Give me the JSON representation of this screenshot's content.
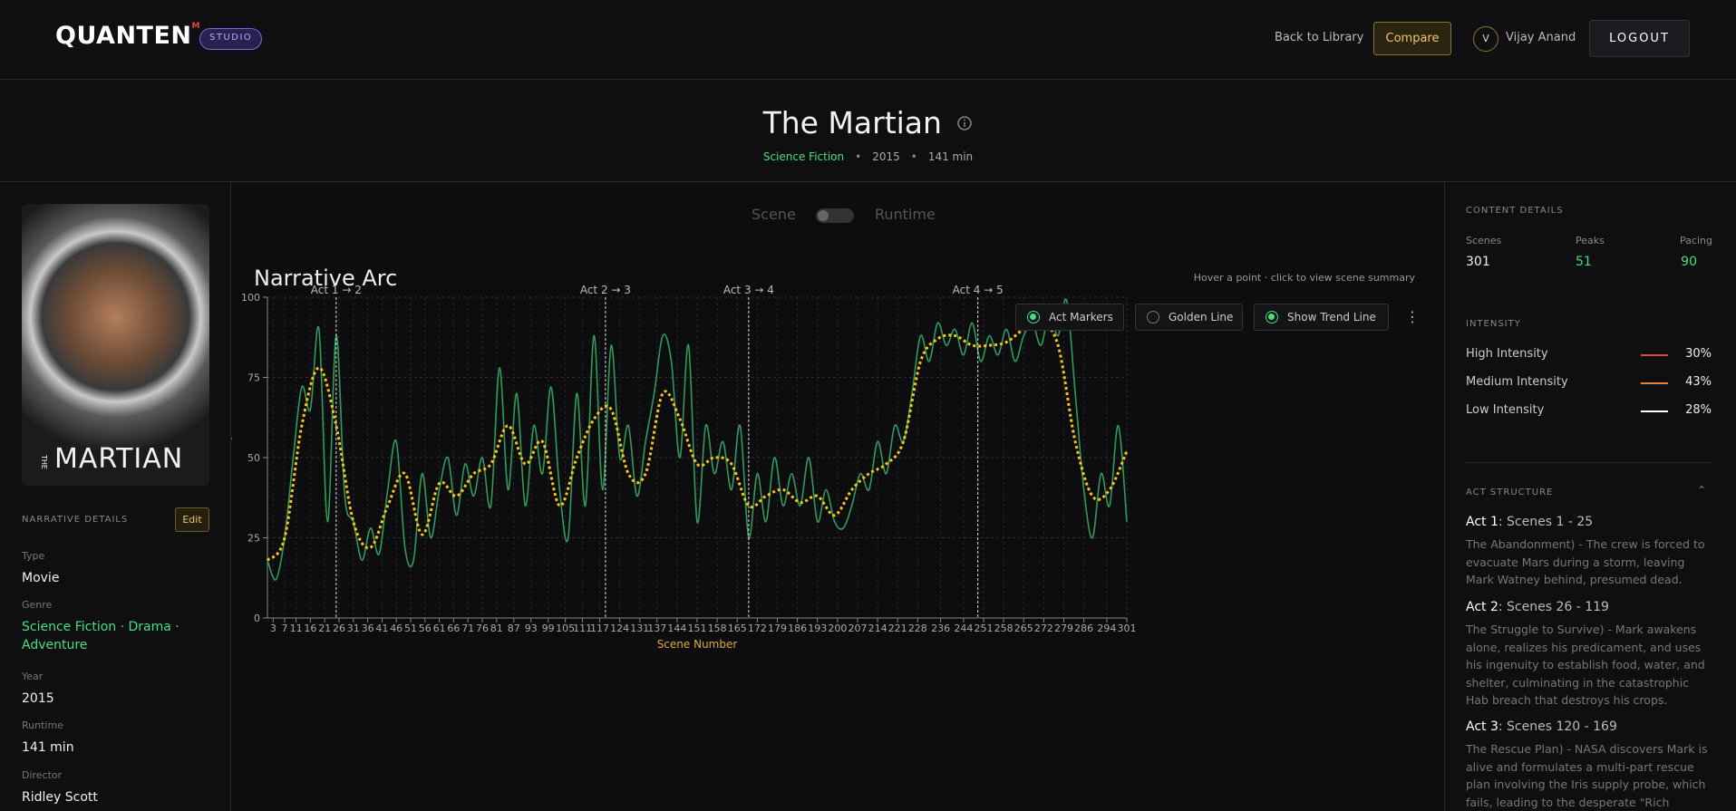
{
  "header": {
    "brand": "QUANTEN",
    "brand_mark": "M",
    "badge": "STUDIO",
    "nav": [
      "Back to Library",
      "Compare"
    ],
    "avatar": "V",
    "user": "Vijay Anand",
    "logout": "LOGOUT"
  },
  "movie": {
    "title": "The Martian",
    "genre": "Science Fiction",
    "year": "2015",
    "runtime": "141 min"
  },
  "poster": {
    "top": "THE",
    "word": "MARTIAN"
  },
  "toggle": {
    "left": "Scene",
    "right": "Runtime"
  },
  "left_panel": {
    "heading": "NARRATIVE DETAILS",
    "edit": "Edit",
    "fields": [
      {
        "label": "Type",
        "value": "Movie"
      },
      {
        "label": "Genre",
        "value": "Science Fiction · Drama · Adventure"
      },
      {
        "label": "Year",
        "value": "2015"
      },
      {
        "label": "Runtime",
        "value": "141 min"
      },
      {
        "label": "Director",
        "value": "Ridley Scott"
      }
    ]
  },
  "chart_header": {
    "title": "Narrative Arc",
    "hint": "Hover a point · click to view scene summary",
    "toggles": [
      "Act Markers",
      "Golden Line",
      "Show Trend Line"
    ],
    "toggle_on": [
      true,
      false,
      true
    ]
  },
  "chart_data": {
    "type": "line",
    "xlabel": "Scene Number",
    "ylabel": "Intensity",
    "xlim": [
      1,
      301
    ],
    "ylim": [
      0,
      100
    ],
    "yticks": [
      0,
      25,
      50,
      75,
      100
    ],
    "xticks": [
      3,
      7,
      11,
      16,
      21,
      26,
      31,
      36,
      41,
      46,
      51,
      56,
      61,
      66,
      71,
      76,
      81,
      87,
      93,
      99,
      105,
      111,
      117,
      124,
      131,
      137,
      144,
      151,
      158,
      165,
      172,
      179,
      186,
      193,
      200,
      207,
      214,
      221,
      228,
      236,
      244,
      251,
      258,
      265,
      272,
      279,
      286,
      294,
      301
    ],
    "grid": true,
    "acts": {
      "x": [
        25,
        119,
        169,
        249
      ],
      "labels": [
        "Act 1 → 2",
        "Act 2 → 3",
        "Act 3 → 4",
        "Act 4 → 5"
      ]
    },
    "series": [
      {
        "name": "Intensity",
        "color": "#2f9a5c",
        "x": [
          1,
          4,
          7,
          10,
          13,
          16,
          19,
          22,
          25,
          28,
          31,
          34,
          37,
          40,
          43,
          46,
          49,
          52,
          55,
          58,
          61,
          64,
          67,
          70,
          73,
          76,
          79,
          82,
          85,
          88,
          91,
          94,
          97,
          100,
          103,
          106,
          109,
          112,
          115,
          118,
          121,
          124,
          127,
          130,
          133,
          136,
          139,
          142,
          145,
          148,
          151,
          154,
          157,
          160,
          163,
          166,
          169,
          172,
          175,
          178,
          181,
          184,
          187,
          190,
          193,
          196,
          199,
          202,
          205,
          208,
          211,
          214,
          217,
          220,
          223,
          226,
          229,
          232,
          235,
          238,
          241,
          244,
          247,
          250,
          253,
          256,
          259,
          262,
          265,
          268,
          271,
          274,
          277,
          280,
          283,
          286,
          289,
          292,
          295,
          298,
          301
        ],
        "values": [
          18,
          12,
          25,
          50,
          72,
          65,
          90,
          30,
          88,
          38,
          30,
          18,
          28,
          20,
          40,
          55,
          22,
          18,
          45,
          25,
          40,
          50,
          32,
          48,
          38,
          50,
          35,
          78,
          40,
          70,
          35,
          60,
          45,
          72,
          40,
          25,
          70,
          35,
          88,
          40,
          85,
          50,
          60,
          38,
          55,
          70,
          88,
          80,
          50,
          85,
          30,
          60,
          45,
          55,
          40,
          60,
          25,
          45,
          30,
          50,
          35,
          45,
          35,
          50,
          30,
          40,
          30,
          28,
          35,
          45,
          40,
          55,
          45,
          60,
          55,
          70,
          88,
          80,
          92,
          85,
          90,
          82,
          92,
          80,
          88,
          82,
          90,
          80,
          88,
          92,
          85,
          95,
          88,
          99,
          70,
          40,
          25,
          45,
          35,
          60,
          30
        ]
      },
      {
        "name": "Trend",
        "color": "#f5c518",
        "x": [
          1,
          7,
          13,
          19,
          25,
          31,
          37,
          43,
          49,
          55,
          61,
          67,
          73,
          79,
          85,
          91,
          97,
          103,
          109,
          115,
          121,
          127,
          133,
          139,
          145,
          151,
          157,
          163,
          169,
          175,
          181,
          187,
          193,
          199,
          205,
          211,
          217,
          223,
          229,
          235,
          241,
          247,
          253,
          259,
          265,
          271,
          277,
          283,
          289,
          295,
          301
        ],
        "values": [
          18,
          25,
          60,
          78,
          60,
          30,
          22,
          35,
          45,
          26,
          42,
          38,
          45,
          48,
          60,
          48,
          55,
          35,
          50,
          62,
          65,
          45,
          45,
          70,
          62,
          48,
          50,
          48,
          35,
          38,
          40,
          36,
          38,
          32,
          40,
          45,
          48,
          55,
          80,
          87,
          88,
          85,
          85,
          86,
          90,
          92,
          85,
          55,
          38,
          40,
          52
        ]
      }
    ]
  },
  "right_panel": {
    "heading": "CONTENT DETAILS",
    "stats": [
      {
        "label": "Scenes",
        "value": "301"
      },
      {
        "label": "Peaks",
        "value": "51"
      },
      {
        "label": "Pacing",
        "value": "90"
      }
    ],
    "intensity_heading": "INTENSITY",
    "intensity": [
      {
        "label": "High Intensity",
        "color": "#e04848",
        "value": "30%"
      },
      {
        "label": "Medium Intensity",
        "color": "#e8833a",
        "value": "43%"
      },
      {
        "label": "Low Intensity",
        "color": "#ffffff",
        "value": "28%"
      }
    ],
    "act_heading": "ACT STRUCTURE",
    "acts": [
      {
        "name": "Act 1",
        "range": ": Scenes 1 - 25",
        "text": "The Abandonment) - The crew is forced to evacuate Mars during a storm, leaving Mark Watney behind, presumed dead."
      },
      {
        "name": "Act 2",
        "range": ": Scenes 26 - 119",
        "text": "The Struggle to Survive) - Mark awakens alone, realizes his predicament, and uses his ingenuity to establish food, water, and shelter, culminating in the catastrophic Hab breach that destroys his crops."
      },
      {
        "name": "Act 3",
        "range": ": Scenes 120 - 169",
        "text": "The Rescue Plan) - NASA discovers Mark is alive and formulates a multi-part rescue plan involving the Iris supply probe, which fails, leading to the desperate \"Rich Purnell"
      }
    ]
  }
}
